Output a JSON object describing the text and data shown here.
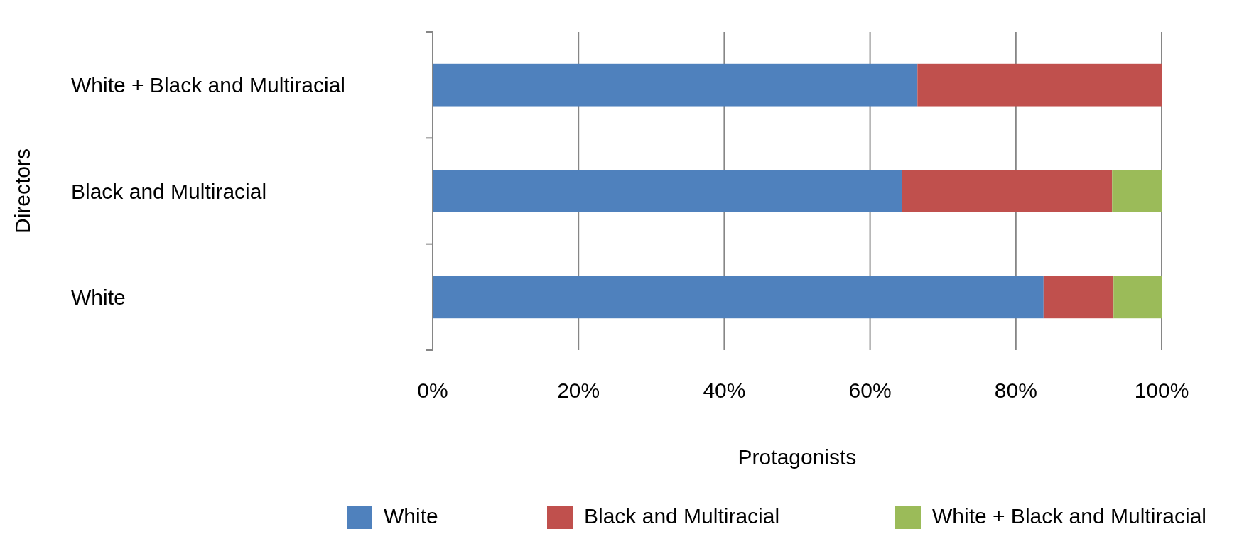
{
  "chart_data": {
    "type": "bar",
    "orientation": "horizontal",
    "stacked": true,
    "xlabel": "Protagonists",
    "ylabel": "Directors",
    "categories": [
      "White + Black and Multiracial",
      "Black and Multiracial",
      "White"
    ],
    "series": [
      {
        "name": "White",
        "color": "#4f81bd",
        "values": [
          66.5,
          64.4,
          83.8
        ]
      },
      {
        "name": "Black and Multiracial",
        "color": "#c0504d",
        "values": [
          33.5,
          28.8,
          9.6
        ]
      },
      {
        "name": "White + Black and Multiracial",
        "color": "#9bbb59",
        "values": [
          0,
          6.8,
          6.6
        ]
      }
    ],
    "xlim": [
      0,
      100
    ],
    "xticks": [
      {
        "value": 0,
        "label": "0%"
      },
      {
        "value": 20,
        "label": "20%"
      },
      {
        "value": 40,
        "label": "40%"
      },
      {
        "value": 60,
        "label": "60%"
      },
      {
        "value": 80,
        "label": "80%"
      },
      {
        "value": 100,
        "label": "100%"
      }
    ],
    "grid": "x",
    "legend": "bottom"
  }
}
